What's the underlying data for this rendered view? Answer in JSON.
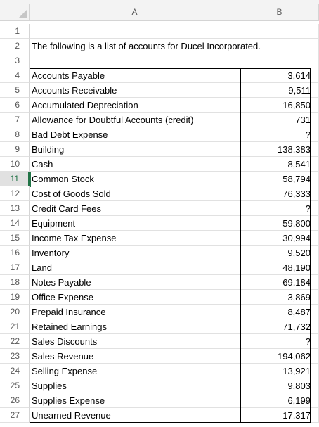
{
  "columns": [
    "A",
    "B"
  ],
  "active_row": "11",
  "title_row": {
    "row": "2",
    "text": "The following is a list of accounts for Ducel Incorporated."
  },
  "blank_rows": [
    "1",
    "3"
  ],
  "accounts": [
    {
      "row": "4",
      "name": "Accounts Payable",
      "value": "3,614"
    },
    {
      "row": "5",
      "name": "Accounts Receivable",
      "value": "9,511"
    },
    {
      "row": "6",
      "name": "Accumulated Depreciation",
      "value": "16,850"
    },
    {
      "row": "7",
      "name": "Allowance for Doubtful Accounts (credit)",
      "value": "731"
    },
    {
      "row": "8",
      "name": "Bad Debt Expense",
      "value": "?"
    },
    {
      "row": "9",
      "name": "Building",
      "value": "138,383"
    },
    {
      "row": "10",
      "name": "Cash",
      "value": "8,541"
    },
    {
      "row": "11",
      "name": "Common Stock",
      "value": "58,794"
    },
    {
      "row": "12",
      "name": "Cost of Goods Sold",
      "value": "76,333"
    },
    {
      "row": "13",
      "name": "Credit Card Fees",
      "value": "?"
    },
    {
      "row": "14",
      "name": "Equipment",
      "value": "59,800"
    },
    {
      "row": "15",
      "name": "Income Tax Expense",
      "value": "30,994"
    },
    {
      "row": "16",
      "name": "Inventory",
      "value": "9,520"
    },
    {
      "row": "17",
      "name": "Land",
      "value": "48,190"
    },
    {
      "row": "18",
      "name": "Notes Payable",
      "value": "69,184"
    },
    {
      "row": "19",
      "name": "Office Expense",
      "value": "3,869"
    },
    {
      "row": "20",
      "name": "Prepaid Insurance",
      "value": "8,487"
    },
    {
      "row": "21",
      "name": "Retained Earnings",
      "value": "71,732"
    },
    {
      "row": "22",
      "name": "Sales Discounts",
      "value": "?"
    },
    {
      "row": "23",
      "name": "Sales Revenue",
      "value": "194,062"
    },
    {
      "row": "24",
      "name": "Selling Expense",
      "value": "13,921"
    },
    {
      "row": "25",
      "name": "Supplies",
      "value": "9,803"
    },
    {
      "row": "26",
      "name": "Supplies Expense",
      "value": "6,199"
    },
    {
      "row": "27",
      "name": "Unearned Revenue",
      "value": "17,317"
    }
  ]
}
